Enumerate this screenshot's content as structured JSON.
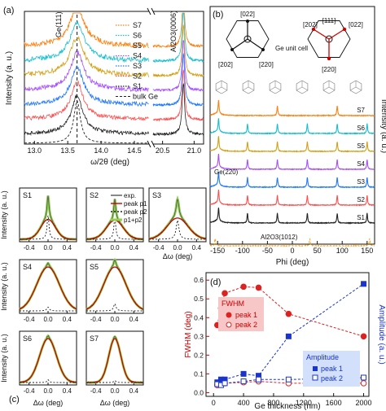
{
  "figure": {
    "panel_a_label": "(a)",
    "panel_b_label": "(b)",
    "panel_c_label": "(c)",
    "panel_d_label": "(d)"
  },
  "chart_data": [
    {
      "id": "a",
      "type": "line",
      "xlabel": "ω/2θ (deg)",
      "ylabel": "Intensity (a. u.)",
      "x_ticks_left": [
        "13.0",
        "13.5",
        "14.0",
        "14.5"
      ],
      "x_ticks_right": [
        "20.5",
        "21.0"
      ],
      "x_left_range": [
        12.85,
        14.72
      ],
      "x_right_range": [
        20.35,
        21.15
      ],
      "y_scale": "log",
      "annotations": {
        "ge_peak": "Ge(111)",
        "al2o3_peak": "Al2O3(0006)"
      },
      "reference_line": {
        "x": 13.64,
        "style": "dashed"
      },
      "series": [
        {
          "name": "S7",
          "color": "#ff7f0e",
          "style": "dotted-line"
        },
        {
          "name": "S6",
          "color": "#17becf",
          "style": "dotted-line"
        },
        {
          "name": "S5",
          "color": "#d4a017",
          "style": "dotted-line"
        },
        {
          "name": "S4",
          "color": "#a64dff",
          "style": "dotted-line"
        },
        {
          "name": "S3",
          "color": "#1f77ff",
          "style": "dotted-line"
        },
        {
          "name": "S2",
          "color": "#ff4d4d",
          "style": "dotted-line"
        },
        {
          "name": "S1",
          "color": "#222222",
          "style": "dotted-line"
        },
        {
          "name": "bulk Ge",
          "color": "#222222",
          "style": "dashed"
        }
      ],
      "ge_peak_center": 13.64,
      "al2o3_peak_center": 20.83
    },
    {
      "id": "b",
      "type": "line",
      "xlabel": "Phi (deg)",
      "ylabel": "Intensity (a. u.)",
      "x_ticks": [
        -150,
        -100,
        -50,
        0,
        50,
        100,
        150
      ],
      "xlim": [
        -165,
        165
      ],
      "annotations": {
        "ge_reflection": "Ge(220)",
        "substrate_reflection": "Al2O3(1012)",
        "unit_cell": "Ge unit cell",
        "left_hex_top": "[022]",
        "left_hex_bottom_left": "[202]",
        "left_hex_bottom_right": "[220]",
        "right_hex_center": "[111]",
        "right_hex_top_left": "[202]",
        "right_hex_top_right": "[022]",
        "right_hex_bottom": "[220]"
      },
      "series": [
        {
          "name": "S7",
          "color": "#ff7f0e",
          "peaks_phi": [
            -148,
            -30,
            90
          ]
        },
        {
          "name": "S6",
          "color": "#17becf",
          "peaks_phi": [
            -148,
            -90,
            -30,
            30,
            90,
            150
          ]
        },
        {
          "name": "S5",
          "color": "#d4a017",
          "peaks_phi": [
            -148,
            -90,
            -30,
            30,
            90,
            150
          ]
        },
        {
          "name": "S4",
          "color": "#a64dff",
          "peaks_phi": [
            -148,
            -90,
            -30,
            30,
            90,
            150
          ]
        },
        {
          "name": "S3",
          "color": "#1f77ff",
          "peaks_phi": [
            -148,
            -90,
            -30,
            30,
            90,
            150
          ]
        },
        {
          "name": "S2",
          "color": "#ff4d4d",
          "peaks_phi": [
            -148,
            -90,
            -30,
            30,
            90,
            150
          ]
        },
        {
          "name": "S1",
          "color": "#222222",
          "peaks_phi": [
            -148,
            -90,
            -30,
            30,
            90,
            150
          ]
        },
        {
          "name": "Al2O3(1012)",
          "color": "#ff9900",
          "peaks_phi": [
            -155,
            35,
            155
          ]
        }
      ]
    },
    {
      "id": "c",
      "type": "line",
      "xlabel": "Δω (deg)",
      "ylabel": "Intensity (a. u.)",
      "x_ticks": [
        "-0.4",
        "0.0",
        "0.4"
      ],
      "xlim": [
        -0.6,
        0.6
      ],
      "legend": [
        "exp.",
        "peak p1",
        "peak p2",
        "p1+p2"
      ],
      "legend_colors": {
        "exp.": "#555555",
        "peak p1": "#cc0000",
        "peak p2": "#222222",
        "p1+p2": "#8fd14f"
      },
      "subplots": [
        {
          "name": "S1",
          "p1_width": 0.36,
          "p1_height": 0.42,
          "p2_width": 0.05,
          "p2_height": 0.5
        },
        {
          "name": "S2",
          "p1_width": 0.42,
          "p1_height": 0.4,
          "p2_width": 0.05,
          "p2_height": 0.45
        },
        {
          "name": "S3",
          "p1_width": 0.52,
          "p1_height": 0.45,
          "p2_width": 0.07,
          "p2_height": 0.4
        },
        {
          "name": "S4",
          "p1_width": 0.56,
          "p1_height": 0.93,
          "p2_width": 0.06,
          "p2_height": 0.08
        },
        {
          "name": "S5",
          "p1_width": 0.55,
          "p1_height": 0.93,
          "p2_width": 0.06,
          "p2_height": 0.15
        },
        {
          "name": "S6",
          "p1_width": 0.42,
          "p1_height": 0.93,
          "p2_width": 0.05,
          "p2_height": 0.06
        },
        {
          "name": "S7",
          "p1_width": 0.3,
          "p1_height": 0.93,
          "p2_width": 0.05,
          "p2_height": 0.04
        }
      ]
    },
    {
      "id": "d",
      "type": "scatter",
      "xlabel": "Ge thickness (nm)",
      "ylabel_left": "FWHM (deg)",
      "ylabel_right": "Amplitude (a. u.)",
      "x_ticks": [
        0,
        400,
        800,
        1200,
        1600,
        2000
      ],
      "xlim": [
        -100,
        2070
      ],
      "y_left_ticks": [
        "0.0",
        "0.1",
        "0.2",
        "0.3",
        "0.4",
        "0.5",
        "0.6"
      ],
      "y_left_lim": [
        -0.02,
        0.64
      ],
      "y_right_lim": [
        -0.02,
        0.64
      ],
      "legend_fwhm_title": "FWHM",
      "legend_amp_title": "Amplitude",
      "series": [
        {
          "name": "peak 1",
          "group": "FWHM",
          "color": "#dd2222",
          "marker": "filled-circle",
          "x": [
            50,
            100,
            150,
            400,
            600,
            1000,
            2000
          ],
          "y": [
            0.36,
            0.45,
            0.53,
            0.565,
            0.56,
            0.42,
            0.3
          ]
        },
        {
          "name": "peak 2",
          "group": "FWHM",
          "color": "#dd2222",
          "marker": "open-circle",
          "x": [
            50,
            100,
            150,
            400,
            600,
            1000,
            2000
          ],
          "y": [
            0.04,
            0.045,
            0.05,
            0.055,
            0.06,
            0.05,
            0.05
          ]
        },
        {
          "name": "peak 1",
          "group": "Amplitude",
          "color": "#1a35c9",
          "marker": "filled-square",
          "x": [
            50,
            100,
            150,
            400,
            600,
            1000,
            2000
          ],
          "y": [
            0.055,
            0.07,
            0.07,
            0.1,
            0.09,
            0.3,
            0.58
          ]
        },
        {
          "name": "peak 2",
          "group": "Amplitude",
          "color": "#1a35c9",
          "marker": "open-square",
          "x": [
            50,
            100,
            150,
            400,
            600,
            1000,
            2000
          ],
          "y": [
            0.045,
            0.04,
            0.05,
            0.06,
            0.07,
            0.07,
            0.08
          ]
        }
      ]
    }
  ]
}
